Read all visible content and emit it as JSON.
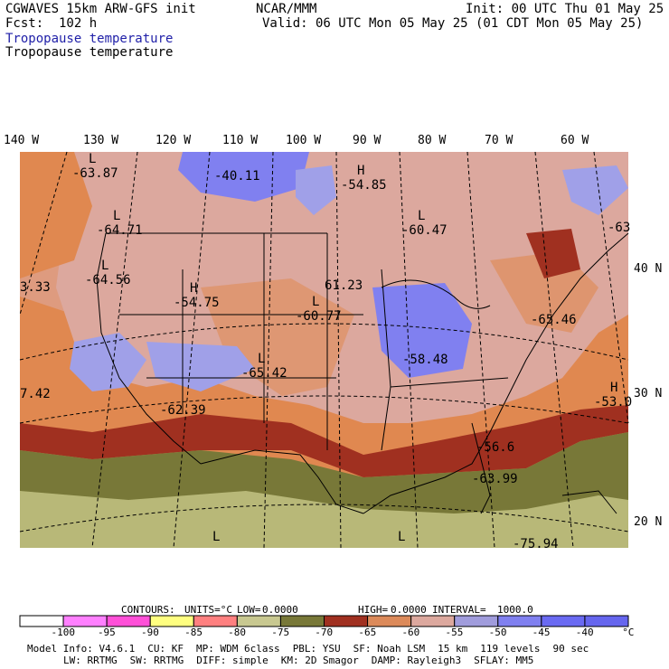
{
  "header": {
    "model": "CGWAVES 15km ARW-GFS init",
    "forecast": "Fcst:  102 h",
    "center": "NCAR/MMM",
    "init": "Init: 00 UTC Thu 01 May 25",
    "valid": "Valid: 06 UTC Mon 05 May 25 (01 CDT Mon 05 May 25)",
    "field_title_blue": "Tropopause temperature",
    "field_title": "Tropopause temperature"
  },
  "map": {
    "longitude_labels": [
      "140 W",
      "130 W",
      "120 W",
      "110 W",
      "100 W",
      "90 W",
      "80 W",
      "70 W",
      "60 W"
    ],
    "latitude_labels": [
      "40 N",
      "30 N",
      "20 N"
    ],
    "extrema": [
      {
        "sym": "L",
        "value": "-63.87"
      },
      {
        "sym": "",
        "value": "-40.11"
      },
      {
        "sym": "H",
        "value": "-54.85"
      },
      {
        "sym": "L",
        "value": "-64.71"
      },
      {
        "sym": "L",
        "value": "-60.47"
      },
      {
        "sym": "",
        "value": "-63"
      },
      {
        "sym": "",
        "value": "3.33"
      },
      {
        "sym": "L",
        "value": "-64.56"
      },
      {
        "sym": "",
        "value": "61.23"
      },
      {
        "sym": "H",
        "value": "-54.75"
      },
      {
        "sym": "L",
        "value": "-60.77"
      },
      {
        "sym": "",
        "value": "-65.46"
      },
      {
        "sym": "",
        "value": "-58.48"
      },
      {
        "sym": "",
        "value": "7.42"
      },
      {
        "sym": "L",
        "value": "-65.42"
      },
      {
        "sym": "",
        "value": "-62.39"
      },
      {
        "sym": "H",
        "value": "-53.0"
      },
      {
        "sym": "",
        "value": "-56.6"
      },
      {
        "sym": "",
        "value": "-63.99"
      },
      {
        "sym": "L",
        "value": ""
      },
      {
        "sym": "L",
        "value": ""
      },
      {
        "sym": "",
        "value": "-75.94"
      }
    ],
    "colors": {
      "deep_blue": "#8080f0",
      "blue": "#a0a0e8",
      "pink": "#dca89e",
      "salmon": "#dc8a5a",
      "brick": "#a03020",
      "olive": "#787838",
      "khaki": "#b8b878",
      "ocean_orange": "#e08850"
    }
  },
  "contours_line": {
    "contours": "CONTOURS:",
    "units": "UNITS=°C",
    "low_label": "LOW=",
    "low": "0.0000",
    "high_label": "HIGH=",
    "high": "0.0000",
    "interval_label": "INTERVAL=",
    "interval": "1000.0"
  },
  "colorbar": {
    "colors": [
      "#ffffff",
      "#ff80ff",
      "#ff50d8",
      "#ffff80",
      "#ff8080",
      "#c8c890",
      "#787838",
      "#a03020",
      "#dc8a5a",
      "#dca89e",
      "#a09cdc",
      "#8080f0",
      "#6a6af2",
      "#6666ee"
    ],
    "tick_labels": [
      "-100",
      "-95",
      "-90",
      "-85",
      "-80",
      "-75",
      "-70",
      "-65",
      "-60",
      "-55",
      "-50",
      "-45",
      "-40",
      "°C"
    ]
  },
  "model_info": {
    "line1": [
      {
        "label": "Model Info:",
        "value": "V4.6.1"
      },
      {
        "label": "CU:",
        "value": "KF"
      },
      {
        "label": "MP:",
        "value": "WDM 6class"
      },
      {
        "label": "PBL:",
        "value": "YSU"
      },
      {
        "label": "SF:",
        "value": "Noah LSM"
      },
      {
        "label": "",
        "value": "15 km"
      },
      {
        "label": "",
        "value": "119 levels"
      },
      {
        "label": "",
        "value": "90 sec"
      }
    ],
    "line2": [
      {
        "label": "LW:",
        "value": "RRTMG"
      },
      {
        "label": "SW:",
        "value": "RRTMG"
      },
      {
        "label": "DIFF:",
        "value": "simple"
      },
      {
        "label": "KM:",
        "value": "2D Smagor"
      },
      {
        "label": "DAMP:",
        "value": "Rayleigh3"
      },
      {
        "label": "SFLAY:",
        "value": "MM5"
      }
    ]
  }
}
